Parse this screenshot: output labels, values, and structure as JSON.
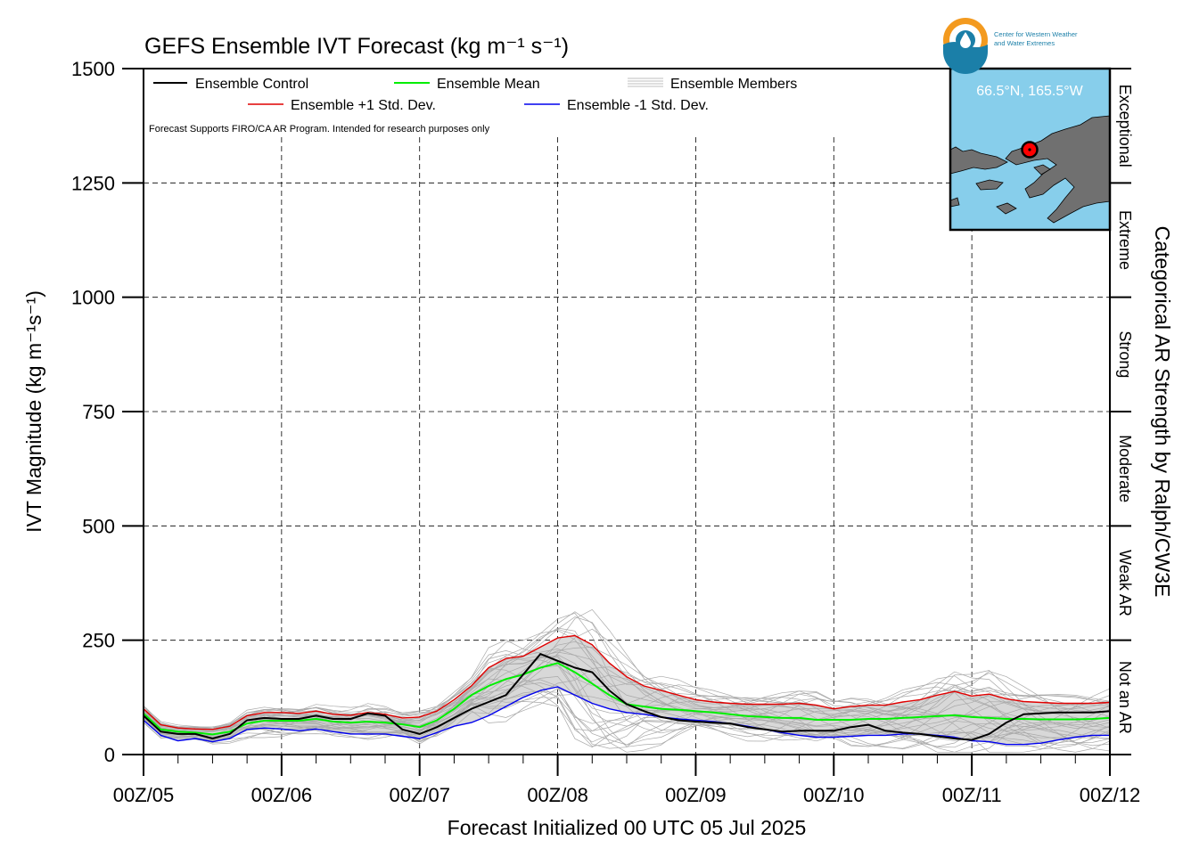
{
  "chart_data": {
    "type": "line",
    "title": "GEFS Ensemble IVT Forecast (kg m⁻¹ s⁻¹)",
    "xlabel": "Forecast Initialized 00 UTC 05 Jul 2025",
    "ylabel": "IVT Magnitude (kg m⁻¹s⁻¹)",
    "right_axis_label": "Categorical AR Strength by Ralph/CW3E",
    "note": "Forecast Supports FIRO/CA AR Program. Intended for research purposes only",
    "xlim": [
      0,
      168
    ],
    "ylim": [
      0,
      1500
    ],
    "yticks": [
      0,
      250,
      500,
      750,
      1000,
      1250,
      1500
    ],
    "xticks": [
      {
        "hour": 0,
        "label": "00Z/05"
      },
      {
        "hour": 24,
        "label": "00Z/06"
      },
      {
        "hour": 48,
        "label": "00Z/07"
      },
      {
        "hour": 72,
        "label": "00Z/08"
      },
      {
        "hour": 96,
        "label": "00Z/09"
      },
      {
        "hour": 120,
        "label": "00Z/10"
      },
      {
        "hour": 144,
        "label": "00Z/11"
      },
      {
        "hour": 168,
        "label": "00Z/12"
      }
    ],
    "categories": [
      {
        "label": "Not an AR",
        "from": 0,
        "to": 250
      },
      {
        "label": "Weak AR",
        "from": 250,
        "to": 500
      },
      {
        "label": "Moderate",
        "from": 500,
        "to": 750
      },
      {
        "label": "Strong",
        "from": 750,
        "to": 1000
      },
      {
        "label": "Extreme",
        "from": 1000,
        "to": 1250
      },
      {
        "label": "Exceptional",
        "from": 1250,
        "to": 1500
      }
    ],
    "grid": true,
    "legend_position": "top-left",
    "legend": [
      {
        "name": "Ensemble Control",
        "color": "#000000"
      },
      {
        "name": "Ensemble Mean",
        "color": "#00ee00"
      },
      {
        "name": "Ensemble Members",
        "color": "#aaaaaa"
      },
      {
        "name": "Ensemble +1 Std. Dev.",
        "color": "#e00000"
      },
      {
        "name": "Ensemble -1 Std. Dev.",
        "color": "#0000ee"
      }
    ],
    "x": [
      0,
      3,
      6,
      9,
      12,
      15,
      18,
      21,
      24,
      27,
      30,
      33,
      36,
      39,
      42,
      45,
      48,
      51,
      54,
      57,
      60,
      63,
      66,
      69,
      72,
      75,
      78,
      81,
      84,
      87,
      90,
      93,
      96,
      99,
      102,
      105,
      108,
      111,
      114,
      117,
      120,
      123,
      126,
      129,
      132,
      135,
      138,
      141,
      144,
      147,
      150,
      153,
      156,
      159,
      162,
      165,
      168
    ],
    "series": [
      {
        "name": "Ensemble Control",
        "color": "#000000",
        "width": 2,
        "values": [
          85,
          50,
          45,
          45,
          35,
          45,
          75,
          80,
          78,
          78,
          85,
          78,
          78,
          90,
          85,
          55,
          45,
          60,
          80,
          100,
          115,
          130,
          175,
          220,
          205,
          190,
          180,
          140,
          110,
          95,
          82,
          75,
          72,
          70,
          68,
          60,
          55,
          50,
          52,
          52,
          52,
          60,
          65,
          52,
          48,
          45,
          40,
          35,
          32,
          45,
          70,
          88,
          90,
          92,
          92,
          92,
          95
        ]
      },
      {
        "name": "Ensemble Mean",
        "color": "#00ee00",
        "width": 2,
        "values": [
          90,
          55,
          50,
          48,
          44,
          50,
          68,
          74,
          74,
          74,
          78,
          72,
          70,
          72,
          70,
          66,
          60,
          75,
          100,
          130,
          150,
          165,
          175,
          190,
          200,
          180,
          155,
          130,
          110,
          105,
          100,
          98,
          95,
          92,
          88,
          84,
          82,
          80,
          80,
          76,
          76,
          76,
          78,
          78,
          80,
          82,
          84,
          86,
          82,
          80,
          78,
          78,
          77,
          77,
          77,
          78,
          80
        ]
      },
      {
        "name": "Ensemble +1 Std. Dev.",
        "color": "#e00000",
        "width": 1.4,
        "values": [
          100,
          65,
          58,
          56,
          55,
          62,
          85,
          92,
          92,
          90,
          95,
          88,
          86,
          92,
          88,
          80,
          82,
          95,
          120,
          150,
          190,
          210,
          215,
          235,
          255,
          260,
          240,
          200,
          170,
          150,
          140,
          130,
          120,
          115,
          112,
          110,
          110,
          110,
          112,
          108,
          100,
          105,
          108,
          108,
          115,
          120,
          130,
          138,
          128,
          132,
          122,
          116,
          114,
          112,
          112,
          112,
          114
        ]
      },
      {
        "name": "Ensemble -1 Std. Dev.",
        "color": "#0000ee",
        "width": 1.4,
        "values": [
          75,
          42,
          30,
          35,
          28,
          35,
          55,
          58,
          56,
          52,
          56,
          50,
          45,
          45,
          45,
          40,
          35,
          48,
          62,
          70,
          85,
          105,
          125,
          140,
          148,
          130,
          112,
          100,
          92,
          88,
          82,
          78,
          75,
          72,
          68,
          62,
          55,
          48,
          42,
          38,
          38,
          40,
          42,
          42,
          45,
          45,
          42,
          38,
          30,
          28,
          22,
          22,
          25,
          32,
          38,
          42,
          42
        ]
      }
    ]
  },
  "map_inset": {
    "location_label": "66.5°N, 165.5°W",
    "ocean_color": "#87ceeb",
    "land_color": "#707070"
  },
  "logo": {
    "line1": "Center for Western Weather",
    "line2": "and Water Extremes"
  }
}
